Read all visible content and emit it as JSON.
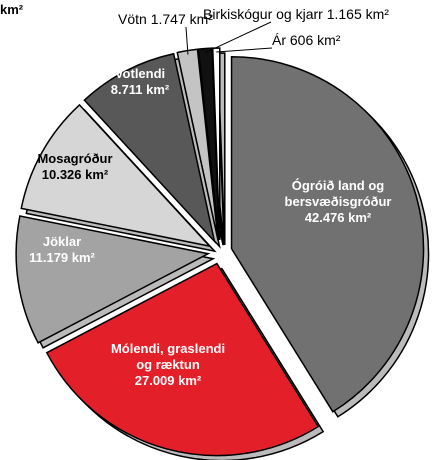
{
  "chart_data": {
    "type": "pie",
    "title": "km²",
    "categories": [
      "Ógróið land og bersvæðisgróður",
      "Mólendi, graslendi og ræktun",
      "Jöklar",
      "Mosagróður",
      "Votlendi",
      "Vötn",
      "Birkiskógur og kjarr",
      "Ár"
    ],
    "values": [
      42476,
      27009,
      11179,
      10326,
      8711,
      1747,
      1165,
      606
    ],
    "value_labels": [
      "42.476 km²",
      "27.009 km²",
      "11.179 km²",
      "10.326 km²",
      "8.711 km²",
      "1.747 km²",
      "1.165 km²",
      "606 km²"
    ],
    "colors": [
      "#717171",
      "#e3202a",
      "#a3a3a3",
      "#d6d6d6",
      "#585858",
      "#c4c4c4",
      "#111111",
      "#ffffff"
    ]
  }
}
